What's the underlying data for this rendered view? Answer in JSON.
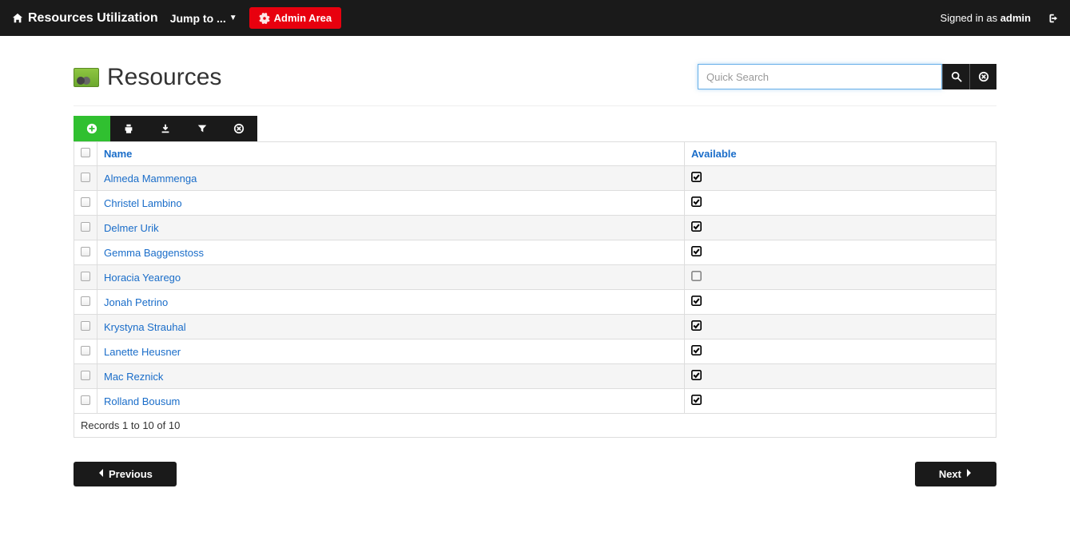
{
  "navbar": {
    "brand": "Resources Utilization",
    "jump_to": "Jump to ...",
    "admin_area": "Admin Area",
    "signed_in_prefix": "Signed in as ",
    "signed_in_user": "admin"
  },
  "page": {
    "title": "Resources",
    "search_placeholder": "Quick Search"
  },
  "columns": {
    "name": "Name",
    "available": "Available"
  },
  "rows": [
    {
      "name": "Almeda Mammenga",
      "available": true
    },
    {
      "name": "Christel Lambino",
      "available": true
    },
    {
      "name": "Delmer Urik",
      "available": true
    },
    {
      "name": "Gemma Baggenstoss",
      "available": true
    },
    {
      "name": "Horacia Yearego",
      "available": false
    },
    {
      "name": "Jonah Petrino",
      "available": true
    },
    {
      "name": "Krystyna Strauhal",
      "available": true
    },
    {
      "name": "Lanette Heusner",
      "available": true
    },
    {
      "name": "Mac Reznick",
      "available": true
    },
    {
      "name": "Rolland Bousum",
      "available": true
    }
  ],
  "footer": "Records 1 to 10 of 10",
  "pager": {
    "prev": "Previous",
    "next": "Next"
  },
  "colors": {
    "navbar_bg": "#1a1a1a",
    "admin_btn_bg": "#e8000e",
    "add_btn_bg": "#30c030",
    "link_color": "#1a6dc9",
    "row_stripe": "#f5f5f5",
    "border": "#ddd",
    "search_focus_border": "#66afe9"
  }
}
